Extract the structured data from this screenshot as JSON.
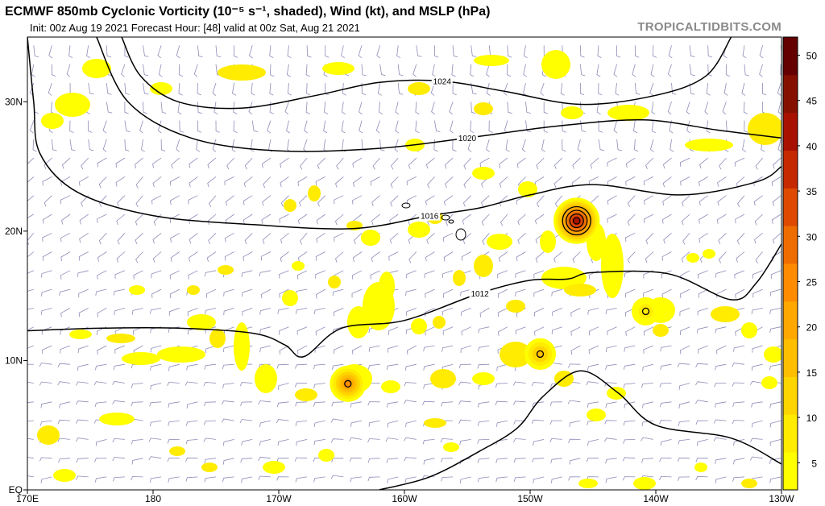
{
  "header": {
    "title": "ECMWF 850mb Cyclonic Vorticity (10⁻⁵ s⁻¹, shaded), Wind (kt), and MSLP (hPa)",
    "subtitle": "Init: 00z Aug 19 2021   Forecast Hour: [48]   valid at 00z Sat, Aug 21 2021",
    "watermark": "TROPICALTIDBITS.COM"
  },
  "axes": {
    "lat_labels": [
      "30N",
      "20N",
      "10N",
      "EQ"
    ],
    "lat_values": [
      30,
      20,
      10,
      0
    ],
    "lon_labels": [
      "170E",
      "180",
      "170W",
      "160W",
      "150W",
      "140W",
      "130W"
    ],
    "lon_values": [
      170,
      180,
      190,
      200,
      210,
      220,
      230
    ],
    "lat_range": [
      0,
      35
    ],
    "lon_range": [
      170,
      230
    ]
  },
  "colorbar": {
    "ticks": [
      5,
      10,
      15,
      20,
      25,
      30,
      35,
      40,
      45,
      50
    ],
    "range": [
      2,
      52
    ],
    "colors": [
      "#ffff00",
      "#ffec00",
      "#ffd500",
      "#ffbf00",
      "#ffa800",
      "#ff8c00",
      "#ef6c00",
      "#dd4a00",
      "#c62800",
      "#a81000",
      "#861000",
      "#640000"
    ]
  },
  "isobars": [
    {
      "label": "1024",
      "points": [
        [
          177.5,
          35
        ],
        [
          179,
          32
        ],
        [
          182,
          30
        ],
        [
          187,
          29.5
        ],
        [
          193,
          30.5
        ],
        [
          198,
          31.5
        ],
        [
          203,
          31.6
        ],
        [
          208,
          30.8
        ],
        [
          214,
          29.8
        ],
        [
          220,
          30.5
        ],
        [
          224,
          32
        ],
        [
          226,
          35
        ]
      ]
    },
    {
      "label": "1020",
      "points": [
        [
          175.5,
          35
        ],
        [
          178,
          30
        ],
        [
          183,
          27.2
        ],
        [
          190,
          26.2
        ],
        [
          198,
          26.4
        ],
        [
          205,
          27.2
        ],
        [
          212,
          28.1
        ],
        [
          219,
          28.6
        ],
        [
          225,
          27.8
        ],
        [
          230,
          27.2
        ]
      ]
    },
    {
      "label": "1016",
      "points": [
        [
          170,
          35
        ],
        [
          170.5,
          30
        ],
        [
          171,
          26
        ],
        [
          174,
          23
        ],
        [
          180,
          21.2
        ],
        [
          188,
          20.5
        ],
        [
          196,
          20.2
        ],
        [
          202,
          21.2
        ],
        [
          206,
          21.8
        ],
        [
          210,
          22.8
        ],
        [
          215,
          23.6
        ],
        [
          222,
          22.8
        ],
        [
          228,
          23.8
        ],
        [
          230,
          25
        ]
      ]
    },
    {
      "label": "1012",
      "points": [
        [
          170,
          12.3
        ],
        [
          176,
          12.5
        ],
        [
          182,
          12.5
        ],
        [
          188,
          12.1
        ],
        [
          190.5,
          11.2
        ],
        [
          192,
          10.3
        ],
        [
          195,
          12.5
        ],
        [
          200,
          13.1
        ],
        [
          206,
          15.2
        ],
        [
          210,
          16.2
        ],
        [
          213,
          16.3
        ],
        [
          215,
          16.8
        ],
        [
          221,
          16.7
        ],
        [
          226,
          14.7
        ],
        [
          228,
          16
        ],
        [
          230,
          19
        ]
      ]
    },
    {
      "label": "",
      "points": [
        [
          230,
          2
        ],
        [
          226,
          4
        ],
        [
          220,
          5
        ],
        [
          217,
          7.5
        ],
        [
          214,
          9.2
        ],
        [
          211,
          7.2
        ],
        [
          209,
          4.8
        ],
        [
          206,
          3
        ],
        [
          202,
          1
        ],
        [
          198,
          0
        ]
      ]
    }
  ],
  "systems": [
    {
      "lon": 213.7,
      "lat": 20.8,
      "peak": 42,
      "rings": 4
    },
    {
      "lon": 195.5,
      "lat": 8.2,
      "peak": 24,
      "rings": 1
    },
    {
      "lon": 210.8,
      "lat": 10.5,
      "peak": 16,
      "rings": 1
    },
    {
      "lon": 219.2,
      "lat": 13.8,
      "peak": 10,
      "rings": 1
    }
  ]
}
